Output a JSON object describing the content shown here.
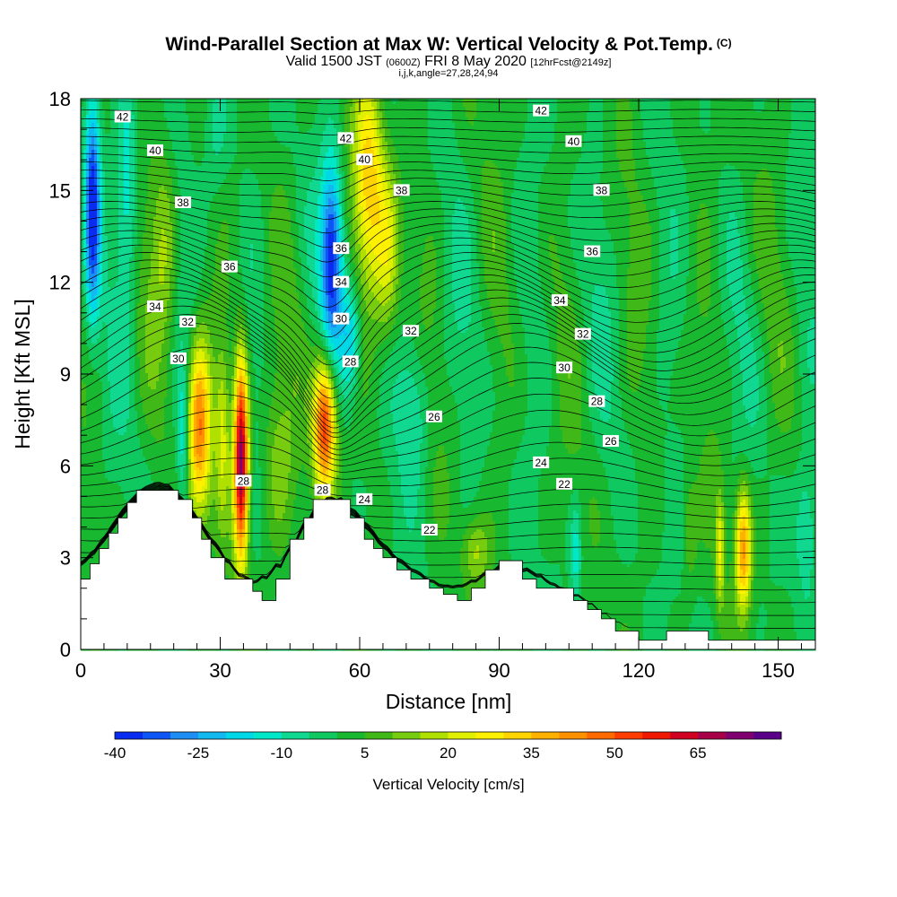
{
  "header": {
    "title": "Wind-Parallel Section at Max W: Vertical Velocity & Pot.Temp.",
    "title_suffix": "(C)",
    "subtitle_main": "Valid 1500 JST",
    "subtitle_utc": "(0600Z)",
    "subtitle_date": "FRI 8 May 2020",
    "subtitle_fcst": "[12hrFcst@2149z]",
    "subtitle2": "i,j,k,angle=27,28,24,94"
  },
  "chart_data": {
    "type": "heatmap",
    "xlabel": "Distance [nm]",
    "ylabel": "Height [Kft MSL]",
    "xlim": [
      0,
      158
    ],
    "ylim": [
      0,
      18
    ],
    "xticks": [
      0,
      30,
      60,
      90,
      120,
      150
    ],
    "yticks": [
      0,
      3,
      6,
      9,
      12,
      15,
      18
    ],
    "background_fill": "vertical velocity [cm/s]",
    "colorbar": {
      "label": "Vertical Velocity [cm/s]",
      "tick_labels": [
        "-40",
        "-25",
        "-10",
        "5",
        "20",
        "35",
        "50",
        "65"
      ],
      "levels": [
        -40,
        -35,
        -30,
        -25,
        -20,
        -15,
        -10,
        -5,
        0,
        5,
        10,
        15,
        20,
        25,
        30,
        35,
        40,
        45,
        50,
        55,
        60,
        65,
        70,
        75
      ],
      "colors": [
        "#0a2cf0",
        "#0e55f5",
        "#1e8ef5",
        "#12b8f0",
        "#00d8e8",
        "#00e8c8",
        "#10d890",
        "#10c860",
        "#18b830",
        "#40b818",
        "#78cc10",
        "#b0e000",
        "#e0f000",
        "#fff000",
        "#ffd400",
        "#ffb000",
        "#ff9000",
        "#ff6a00",
        "#ff3c00",
        "#f01800",
        "#d00020",
        "#a80048",
        "#800070",
        "#5a0088"
      ]
    },
    "terrain": [
      [
        0,
        2.3
      ],
      [
        2,
        2.3
      ],
      [
        2,
        2.8
      ],
      [
        4,
        2.8
      ],
      [
        4,
        3.3
      ],
      [
        6,
        3.3
      ],
      [
        6,
        3.8
      ],
      [
        8,
        3.8
      ],
      [
        8,
        4.3
      ],
      [
        10,
        4.3
      ],
      [
        10,
        4.8
      ],
      [
        12,
        4.8
      ],
      [
        12,
        5.2
      ],
      [
        21,
        5.2
      ],
      [
        21,
        4.9
      ],
      [
        24,
        4.9
      ],
      [
        24,
        4.3
      ],
      [
        26,
        4.3
      ],
      [
        26,
        3.6
      ],
      [
        28,
        3.6
      ],
      [
        28,
        3.0
      ],
      [
        31,
        3.0
      ],
      [
        31,
        2.3
      ],
      [
        37,
        2.3
      ],
      [
        37,
        1.9
      ],
      [
        39,
        1.9
      ],
      [
        39,
        1.6
      ],
      [
        42,
        1.6
      ],
      [
        42,
        2.3
      ],
      [
        45,
        2.3
      ],
      [
        45,
        3.6
      ],
      [
        48,
        3.6
      ],
      [
        48,
        4.3
      ],
      [
        50,
        4.3
      ],
      [
        50,
        4.9
      ],
      [
        58,
        4.9
      ],
      [
        58,
        4.3
      ],
      [
        61,
        4.3
      ],
      [
        61,
        3.6
      ],
      [
        63,
        3.6
      ],
      [
        63,
        3.3
      ],
      [
        65,
        3.3
      ],
      [
        65,
        3.0
      ],
      [
        68,
        3.0
      ],
      [
        68,
        2.6
      ],
      [
        71,
        2.6
      ],
      [
        71,
        2.3
      ],
      [
        75,
        2.3
      ],
      [
        75,
        2.0
      ],
      [
        78,
        2.0
      ],
      [
        78,
        1.8
      ],
      [
        81,
        1.8
      ],
      [
        81,
        1.6
      ],
      [
        84,
        1.6
      ],
      [
        84,
        2.0
      ],
      [
        87,
        2.0
      ],
      [
        87,
        2.6
      ],
      [
        90,
        2.6
      ],
      [
        90,
        2.9
      ],
      [
        95,
        2.9
      ],
      [
        95,
        2.3
      ],
      [
        98,
        2.3
      ],
      [
        98,
        2.0
      ],
      [
        106,
        2.0
      ],
      [
        106,
        1.6
      ],
      [
        109,
        1.6
      ],
      [
        109,
        1.3
      ],
      [
        112,
        1.3
      ],
      [
        112,
        1.0
      ],
      [
        115,
        1.0
      ],
      [
        115,
        0.6
      ],
      [
        120,
        0.6
      ],
      [
        120,
        0.3
      ],
      [
        126,
        0.3
      ],
      [
        126,
        0.6
      ],
      [
        135,
        0.6
      ],
      [
        135,
        0.3
      ],
      [
        158,
        0.3
      ]
    ],
    "updraft_cores": [
      {
        "x": 26,
        "y": 7.0,
        "w": 0.55
      },
      {
        "x": 34,
        "y": 6.6,
        "w": 0.75
      },
      {
        "x": 52,
        "y": 7.4,
        "w": 0.6
      },
      {
        "x": 137,
        "y": 3.4,
        "w": 0.3
      },
      {
        "x": 85,
        "y": 3.0,
        "w": 0.2
      }
    ],
    "downdraft_cores": [
      {
        "x": 2,
        "y": 14.5,
        "w": -0.4
      },
      {
        "x": 54,
        "y": 12.5,
        "w": -0.35
      },
      {
        "x": 22,
        "y": 7.2,
        "w": -0.2
      },
      {
        "x": 107,
        "y": 3.0,
        "w": -0.12
      }
    ],
    "theta_contour_labels": [
      {
        "text": "42",
        "x": 9,
        "y": 17.4
      },
      {
        "text": "40",
        "x": 16,
        "y": 16.3
      },
      {
        "text": "38",
        "x": 22,
        "y": 14.6
      },
      {
        "text": "36",
        "x": 32,
        "y": 12.5
      },
      {
        "text": "34",
        "x": 16,
        "y": 11.2
      },
      {
        "text": "32",
        "x": 23,
        "y": 10.7
      },
      {
        "text": "30",
        "x": 21,
        "y": 9.5
      },
      {
        "text": "28",
        "x": 35,
        "y": 5.5
      },
      {
        "text": "42",
        "x": 57,
        "y": 16.7
      },
      {
        "text": "40",
        "x": 61,
        "y": 16.0
      },
      {
        "text": "38",
        "x": 69,
        "y": 15.0
      },
      {
        "text": "36",
        "x": 56,
        "y": 13.1
      },
      {
        "text": "34",
        "x": 56,
        "y": 12.0
      },
      {
        "text": "30",
        "x": 56,
        "y": 10.8
      },
      {
        "text": "28",
        "x": 58,
        "y": 9.4
      },
      {
        "text": "28",
        "x": 52,
        "y": 5.2
      },
      {
        "text": "24",
        "x": 61,
        "y": 4.9
      },
      {
        "text": "32",
        "x": 71,
        "y": 10.4
      },
      {
        "text": "26",
        "x": 76,
        "y": 7.6
      },
      {
        "text": "22",
        "x": 75,
        "y": 3.9
      },
      {
        "text": "42",
        "x": 99,
        "y": 17.6
      },
      {
        "text": "40",
        "x": 106,
        "y": 16.6
      },
      {
        "text": "38",
        "x": 112,
        "y": 15.0
      },
      {
        "text": "36",
        "x": 110,
        "y": 13.0
      },
      {
        "text": "34",
        "x": 103,
        "y": 11.4
      },
      {
        "text": "32",
        "x": 108,
        "y": 10.3
      },
      {
        "text": "30",
        "x": 104,
        "y": 9.2
      },
      {
        "text": "28",
        "x": 111,
        "y": 8.1
      },
      {
        "text": "26",
        "x": 114,
        "y": 6.8
      },
      {
        "text": "24",
        "x": 99,
        "y": 6.1
      },
      {
        "text": "22",
        "x": 104,
        "y": 5.4
      }
    ]
  }
}
